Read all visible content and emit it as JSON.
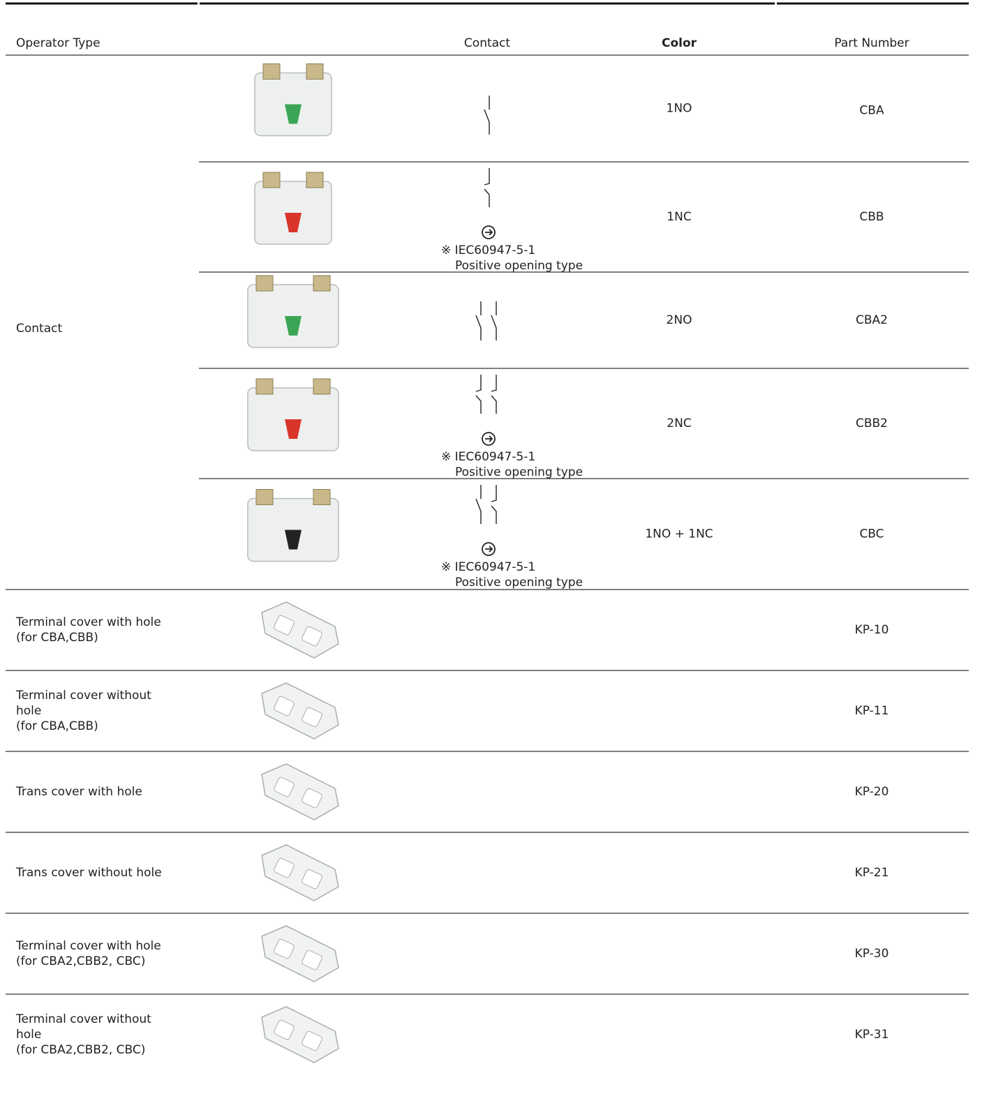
{
  "header": {
    "operator_type": "Operator Type",
    "contact": "Contact",
    "color": "Color",
    "part_number": "Part Number"
  },
  "contact_group": {
    "label": "Contact",
    "rows": [
      {
        "color": "1NO",
        "part_number": "CBA"
      },
      {
        "color": "1NC",
        "part_number": "CBB",
        "note": {
          "standard": "※ IEC60947-5-1",
          "description": "Positive opening type"
        }
      },
      {
        "color": "2NO",
        "part_number": "CBA2"
      },
      {
        "color": "2NC",
        "part_number": "CBB2",
        "note": {
          "standard": "※ IEC60947-5-1",
          "description": "Positive opening type"
        }
      },
      {
        "color": "1NO + 1NC",
        "part_number": "CBC",
        "note": {
          "standard": "※ IEC60947-5-1",
          "description": "Positive opening type"
        }
      }
    ]
  },
  "covers": [
    {
      "label": [
        "Terminal cover with hole",
        "(for CBA,CBB)"
      ],
      "part_number": "KP-10"
    },
    {
      "label": [
        "Terminal cover without",
        "hole",
        "(for CBA,CBB)"
      ],
      "part_number": "KP-11"
    },
    {
      "label": [
        "Trans cover with hole"
      ],
      "part_number": "KP-20"
    },
    {
      "label": [
        "Trans cover without hole"
      ],
      "part_number": "KP-21"
    },
    {
      "label": [
        "Terminal cover with hole",
        "(for CBA2,CBB2, CBC)"
      ],
      "part_number": "KP-30"
    },
    {
      "label": [
        "Terminal cover without",
        "hole",
        "(for CBA2,CBB2, CBC)"
      ],
      "part_number": "KP-31"
    }
  ]
}
